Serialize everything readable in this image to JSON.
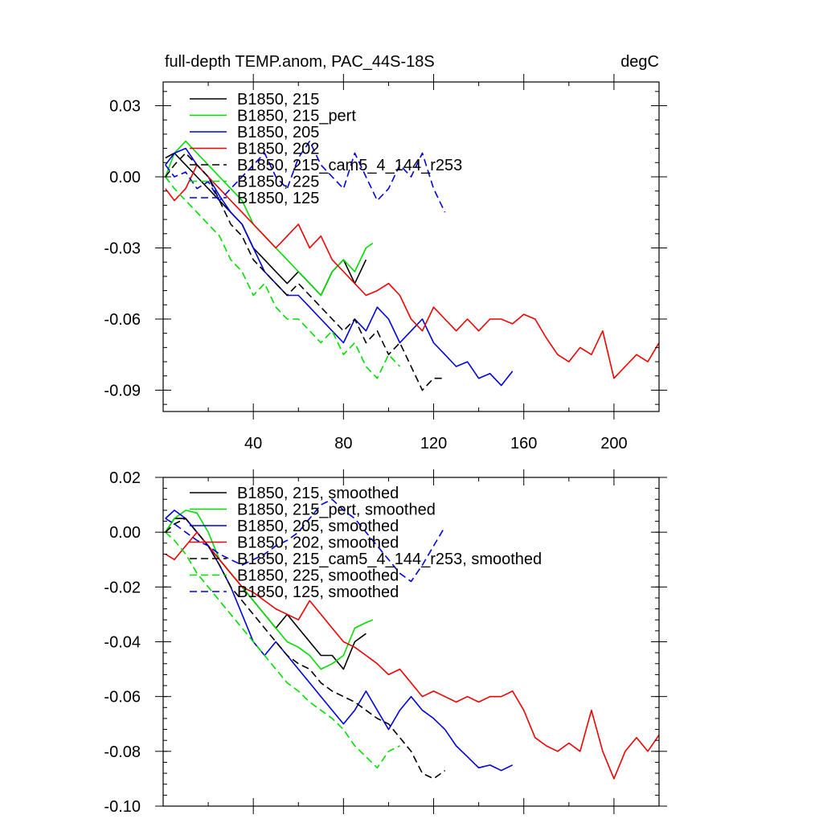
{
  "chart_data": [
    {
      "type": "line",
      "title": "full-depth TEMP.anom, PAC_44S-18S",
      "units": "degC",
      "xlim": [
        0,
        220
      ],
      "ylim": [
        -0.1,
        0.04
      ],
      "xticks": [
        40,
        80,
        120,
        160,
        200
      ],
      "xtick_labels": [
        "40",
        "80",
        "120",
        "160",
        "200"
      ],
      "yticks": [
        0.03,
        0.0,
        -0.03,
        -0.06,
        -0.09
      ],
      "ytick_labels": [
        "0.03",
        "0.00",
        "-0.03",
        "-0.06",
        "-0.09"
      ],
      "series": [
        {
          "name": "B1850, 215",
          "color": "#000000",
          "dash": "solid",
          "x": [
            1,
            5,
            10,
            15,
            20,
            25,
            30,
            35,
            40,
            45,
            50,
            55,
            60,
            65,
            70,
            75,
            80,
            85,
            90
          ],
          "y": [
            0.008,
            0.01,
            0.005,
            0.0,
            -0.005,
            -0.01,
            -0.015,
            -0.02,
            -0.03,
            -0.035,
            -0.04,
            -0.045,
            -0.04,
            -0.045,
            -0.05,
            -0.04,
            -0.035,
            -0.045,
            -0.035
          ]
        },
        {
          "name": "B1850, 215_pert",
          "color": "#00dd00",
          "dash": "solid",
          "x": [
            1,
            5,
            10,
            15,
            20,
            25,
            30,
            35,
            40,
            45,
            50,
            55,
            60,
            65,
            70,
            75,
            80,
            85,
            90,
            93
          ],
          "y": [
            0.0,
            0.01,
            0.015,
            0.01,
            0.005,
            0.0,
            -0.005,
            -0.01,
            -0.02,
            -0.025,
            -0.03,
            -0.035,
            -0.04,
            -0.045,
            -0.05,
            -0.04,
            -0.035,
            -0.04,
            -0.03,
            -0.028
          ]
        },
        {
          "name": "B1850, 205",
          "color": "#0000dd",
          "dash": "solid",
          "x": [
            1,
            5,
            10,
            15,
            20,
            25,
            30,
            35,
            40,
            45,
            50,
            55,
            60,
            65,
            70,
            75,
            80,
            85,
            90,
            95,
            100,
            105,
            110,
            115,
            120,
            125,
            130,
            135,
            140,
            145,
            150,
            155
          ],
          "y": [
            0.005,
            0.01,
            0.012,
            0.005,
            0.0,
            -0.008,
            -0.015,
            -0.02,
            -0.03,
            -0.04,
            -0.045,
            -0.05,
            -0.05,
            -0.055,
            -0.06,
            -0.065,
            -0.07,
            -0.06,
            -0.065,
            -0.055,
            -0.06,
            -0.07,
            -0.065,
            -0.06,
            -0.07,
            -0.075,
            -0.08,
            -0.078,
            -0.085,
            -0.083,
            -0.088,
            -0.082
          ]
        },
        {
          "name": "B1850, 202",
          "color": "#ee0000",
          "dash": "solid",
          "x": [
            1,
            5,
            10,
            15,
            20,
            25,
            30,
            35,
            40,
            45,
            50,
            55,
            60,
            65,
            70,
            75,
            80,
            85,
            90,
            95,
            100,
            105,
            110,
            115,
            120,
            125,
            130,
            135,
            140,
            145,
            150,
            155,
            160,
            165,
            170,
            175,
            180,
            185,
            190,
            195,
            200,
            205,
            210,
            215,
            220
          ],
          "y": [
            -0.005,
            -0.01,
            -0.005,
            0.005,
            0.0,
            -0.005,
            -0.01,
            -0.015,
            -0.02,
            -0.025,
            -0.03,
            -0.025,
            -0.02,
            -0.03,
            -0.025,
            -0.035,
            -0.04,
            -0.045,
            -0.05,
            -0.048,
            -0.045,
            -0.05,
            -0.06,
            -0.065,
            -0.055,
            -0.06,
            -0.065,
            -0.06,
            -0.065,
            -0.06,
            -0.06,
            -0.062,
            -0.058,
            -0.06,
            -0.068,
            -0.075,
            -0.078,
            -0.072,
            -0.075,
            -0.065,
            -0.085,
            -0.08,
            -0.075,
            -0.078,
            -0.07
          ]
        },
        {
          "name": "B1850, 215_cam5_4_144_r253",
          "color": "#000000",
          "dash": "dashed",
          "x": [
            1,
            5,
            10,
            15,
            20,
            25,
            30,
            35,
            40,
            45,
            50,
            55,
            60,
            65,
            70,
            75,
            80,
            85,
            90,
            95,
            100,
            105,
            110,
            115,
            120,
            125
          ],
          "y": [
            0.0,
            0.005,
            0.01,
            0.005,
            0.0,
            -0.01,
            -0.02,
            -0.025,
            -0.035,
            -0.04,
            -0.045,
            -0.05,
            -0.045,
            -0.05,
            -0.055,
            -0.06,
            -0.065,
            -0.06,
            -0.07,
            -0.065,
            -0.075,
            -0.07,
            -0.08,
            -0.09,
            -0.085,
            -0.085
          ]
        },
        {
          "name": "B1850, 225",
          "color": "#00dd00",
          "dash": "dashed",
          "x": [
            1,
            5,
            10,
            15,
            20,
            25,
            30,
            35,
            40,
            45,
            50,
            55,
            60,
            65,
            70,
            75,
            80,
            85,
            90,
            95,
            100,
            105
          ],
          "y": [
            0.0,
            -0.005,
            -0.01,
            -0.015,
            -0.02,
            -0.025,
            -0.035,
            -0.04,
            -0.05,
            -0.045,
            -0.055,
            -0.06,
            -0.06,
            -0.065,
            -0.07,
            -0.065,
            -0.075,
            -0.07,
            -0.08,
            -0.085,
            -0.075,
            -0.08
          ]
        },
        {
          "name": "B1850, 125",
          "color": "#0000dd",
          "dash": "dashed",
          "x": [
            1,
            5,
            10,
            15,
            20,
            25,
            30,
            35,
            40,
            45,
            50,
            55,
            60,
            65,
            70,
            75,
            80,
            85,
            90,
            95,
            100,
            105,
            110,
            115,
            120,
            125
          ],
          "y": [
            0.005,
            0.0,
            0.002,
            -0.005,
            -0.002,
            -0.01,
            -0.005,
            0.0,
            0.005,
            0.01,
            0.0,
            -0.005,
            0.008,
            0.015,
            0.005,
            0.0,
            -0.005,
            0.01,
            0.0,
            -0.01,
            -0.005,
            0.005,
            0.0,
            0.01,
            -0.005,
            -0.015
          ]
        }
      ]
    },
    {
      "type": "line",
      "title": "",
      "units": "",
      "xlim": [
        0,
        220
      ],
      "ylim": [
        -0.1,
        0.02
      ],
      "xticks": [
        40,
        80,
        120,
        160,
        200
      ],
      "xtick_labels": [],
      "yticks": [
        0.02,
        0.0,
        -0.02,
        -0.04,
        -0.06,
        -0.08,
        -0.1
      ],
      "ytick_labels": [
        "0.02",
        "0.00",
        "-0.02",
        "-0.04",
        "-0.06",
        "-0.08",
        "-0.10"
      ],
      "series": [
        {
          "name": "B1850, 215, smoothed",
          "color": "#000000",
          "dash": "solid",
          "x": [
            1,
            5,
            10,
            15,
            20,
            25,
            30,
            35,
            40,
            45,
            50,
            55,
            60,
            65,
            70,
            75,
            80,
            85,
            90
          ],
          "y": [
            0.0,
            0.005,
            0.005,
            0.0,
            -0.005,
            -0.01,
            -0.015,
            -0.02,
            -0.025,
            -0.03,
            -0.035,
            -0.03,
            -0.035,
            -0.04,
            -0.045,
            -0.045,
            -0.05,
            -0.04,
            -0.037
          ]
        },
        {
          "name": "B1850, 215_pert, smoothed",
          "color": "#00dd00",
          "dash": "solid",
          "x": [
            1,
            5,
            10,
            15,
            20,
            25,
            30,
            35,
            40,
            45,
            50,
            55,
            60,
            65,
            70,
            75,
            80,
            85,
            90,
            93
          ],
          "y": [
            0.0,
            0.005,
            0.008,
            0.007,
            0.0,
            -0.01,
            -0.015,
            -0.02,
            -0.025,
            -0.03,
            -0.035,
            -0.04,
            -0.042,
            -0.045,
            -0.05,
            -0.048,
            -0.045,
            -0.035,
            -0.033,
            -0.032
          ]
        },
        {
          "name": "B1850, 205, smoothed",
          "color": "#0000dd",
          "dash": "solid",
          "x": [
            1,
            5,
            10,
            15,
            20,
            25,
            30,
            35,
            40,
            45,
            50,
            55,
            60,
            65,
            70,
            75,
            80,
            85,
            90,
            95,
            100,
            105,
            110,
            115,
            120,
            125,
            130,
            135,
            140,
            145,
            150,
            155
          ],
          "y": [
            0.005,
            0.008,
            0.005,
            0.0,
            -0.005,
            -0.012,
            -0.02,
            -0.03,
            -0.04,
            -0.045,
            -0.04,
            -0.045,
            -0.05,
            -0.055,
            -0.06,
            -0.065,
            -0.07,
            -0.065,
            -0.058,
            -0.065,
            -0.072,
            -0.065,
            -0.06,
            -0.065,
            -0.068,
            -0.072,
            -0.078,
            -0.082,
            -0.086,
            -0.085,
            -0.087,
            -0.085
          ]
        },
        {
          "name": "B1850, 202, smoothed",
          "color": "#ee0000",
          "dash": "solid",
          "x": [
            1,
            5,
            10,
            15,
            20,
            25,
            30,
            35,
            40,
            45,
            50,
            55,
            60,
            65,
            70,
            75,
            80,
            85,
            90,
            95,
            100,
            105,
            110,
            115,
            120,
            125,
            130,
            135,
            140,
            145,
            150,
            155,
            160,
            165,
            170,
            175,
            180,
            185,
            190,
            195,
            200,
            205,
            210,
            215,
            220
          ],
          "y": [
            -0.008,
            -0.01,
            -0.005,
            0.0,
            -0.005,
            -0.01,
            -0.015,
            -0.02,
            -0.022,
            -0.025,
            -0.028,
            -0.03,
            -0.032,
            -0.025,
            -0.03,
            -0.035,
            -0.04,
            -0.042,
            -0.045,
            -0.048,
            -0.052,
            -0.05,
            -0.055,
            -0.06,
            -0.058,
            -0.06,
            -0.062,
            -0.06,
            -0.062,
            -0.06,
            -0.06,
            -0.058,
            -0.065,
            -0.075,
            -0.078,
            -0.08,
            -0.077,
            -0.08,
            -0.065,
            -0.08,
            -0.09,
            -0.08,
            -0.075,
            -0.08,
            -0.074
          ]
        },
        {
          "name": "B1850, 215_cam5_4_144_r253, smoothed",
          "color": "#000000",
          "dash": "dashed",
          "x": [
            1,
            5,
            10,
            15,
            20,
            25,
            30,
            35,
            40,
            45,
            50,
            55,
            60,
            65,
            70,
            75,
            80,
            85,
            90,
            95,
            100,
            105,
            110,
            115,
            120,
            125
          ],
          "y": [
            0.0,
            0.003,
            0.005,
            0.0,
            -0.005,
            -0.012,
            -0.02,
            -0.025,
            -0.03,
            -0.035,
            -0.04,
            -0.045,
            -0.048,
            -0.05,
            -0.055,
            -0.058,
            -0.06,
            -0.062,
            -0.065,
            -0.068,
            -0.07,
            -0.075,
            -0.08,
            -0.088,
            -0.09,
            -0.087
          ]
        },
        {
          "name": "B1850, 225, smoothed",
          "color": "#00dd00",
          "dash": "dashed",
          "x": [
            1,
            5,
            10,
            15,
            20,
            25,
            30,
            35,
            40,
            45,
            50,
            55,
            60,
            65,
            70,
            75,
            80,
            85,
            90,
            95,
            100,
            105
          ],
          "y": [
            0.0,
            -0.003,
            -0.008,
            -0.015,
            -0.02,
            -0.025,
            -0.03,
            -0.035,
            -0.04,
            -0.045,
            -0.05,
            -0.055,
            -0.058,
            -0.062,
            -0.065,
            -0.068,
            -0.072,
            -0.078,
            -0.082,
            -0.086,
            -0.08,
            -0.078
          ]
        },
        {
          "name": "B1850, 125, smoothed",
          "color": "#0000dd",
          "dash": "dashed",
          "x": [
            1,
            5,
            10,
            15,
            20,
            25,
            30,
            35,
            40,
            45,
            50,
            55,
            60,
            65,
            70,
            75,
            80,
            85,
            90,
            95,
            100,
            105,
            110,
            115,
            120,
            125
          ],
          "y": [
            0.005,
            0.003,
            0.0,
            -0.003,
            -0.005,
            -0.008,
            -0.01,
            -0.012,
            -0.01,
            -0.008,
            -0.005,
            -0.003,
            0.0,
            0.005,
            0.01,
            0.012,
            0.008,
            0.005,
            0.0,
            -0.005,
            -0.01,
            -0.015,
            -0.018,
            -0.012,
            -0.005,
            0.002
          ]
        }
      ]
    }
  ]
}
